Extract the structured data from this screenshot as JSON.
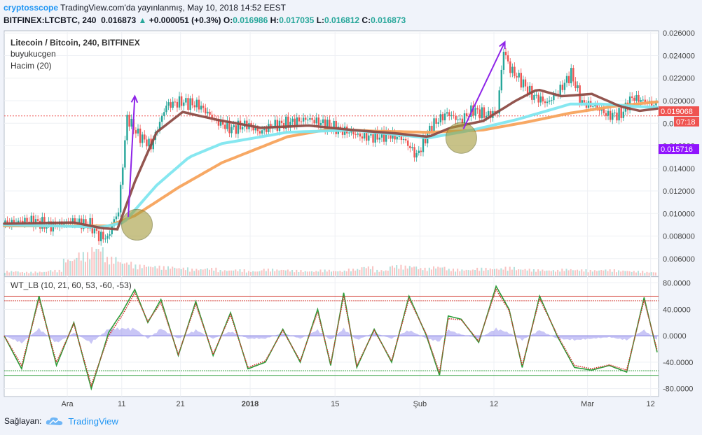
{
  "header": {
    "publisher": "cryptosscope",
    "published_text": "TradingView.com'da yayınlanmış, May 10, 2018 14:52 EEST",
    "symbol": "BITFINEX:LTCBTC, 240",
    "last": "0.016873",
    "change": "+0.000051 (+0.3%)",
    "o_label": "O:",
    "o_val": "0.016986",
    "h_label": "H:",
    "h_val": "0.017035",
    "l_label": "L:",
    "l_val": "0.016812",
    "c_label": "C:",
    "c_val": "0.016873"
  },
  "legend": {
    "title": "Litecoin / Bitcoin, 240, BITFINEX",
    "author": "buyukucgen",
    "volume": "Hacim (20)",
    "osc": "WT_LB (10, 21, 60, 53, -60, -53)"
  },
  "footer": {
    "label": "Sağlayan:",
    "brand": "TradingView"
  },
  "colors": {
    "up": "#26a69a",
    "down": "#ef5350",
    "ma_fast": "#8d4c46",
    "ma_mid": "#7fe6ef",
    "ma_slow": "#f7a35c",
    "arrow": "#8e24e8",
    "circle": "#a49b3a",
    "wt1": "#2e9d3a",
    "wt2": "#d0342c",
    "diff": "#9c98ef",
    "badge_red": "#ef5350",
    "badge_purple": "#9013fe"
  },
  "chart_data": [
    {
      "type": "candlestick",
      "title": "Litecoin / Bitcoin, 240, BITFINEX",
      "ylim": [
        0.0045,
        0.0262
      ],
      "y_ticks": [
        "0.026000",
        "0.024000",
        "0.022000",
        "0.020000",
        "0.018000",
        "0.016000",
        "0.014000",
        "0.012000",
        "0.010000",
        "0.008000",
        "0.006000"
      ],
      "x_tick_labels": [
        "Ara",
        "11",
        "21",
        "2018",
        "15",
        "Şub",
        "12",
        "Mar",
        "12"
      ],
      "price_series": {
        "x": [
          0,
          12,
          22,
          32,
          40,
          44,
          48,
          51,
          53,
          57,
          62,
          68,
          75,
          82,
          90,
          98,
          105,
          112,
          118,
          124,
          130,
          140,
          150,
          155,
          160,
          165,
          171,
          177,
          184,
          190,
          197,
          204,
          210,
          216,
          222,
          227,
          230,
          233,
          237,
          243,
          250,
          256,
          261,
          266,
          272,
          278,
          284,
          289,
          300
        ],
        "close": [
          0.0091,
          0.0094,
          0.0089,
          0.0093,
          0.009,
          0.008,
          0.0078,
          0.0094,
          0.0102,
          0.0185,
          0.017,
          0.016,
          0.0196,
          0.0199,
          0.0196,
          0.0182,
          0.0175,
          0.0179,
          0.0172,
          0.0178,
          0.018,
          0.0184,
          0.0178,
          0.0174,
          0.0172,
          0.0168,
          0.0168,
          0.017,
          0.0166,
          0.0151,
          0.0178,
          0.0189,
          0.0182,
          0.0192,
          0.0187,
          0.019,
          0.0245,
          0.0228,
          0.022,
          0.0205,
          0.0198,
          0.021,
          0.0224,
          0.0198,
          0.0195,
          0.0187,
          0.0188,
          0.0203,
          0.0196
        ]
      },
      "moving_averages": [
        {
          "x": [
            0,
            32,
            45,
            52,
            60,
            70,
            82,
            98,
            118,
            140,
            160,
            180,
            195,
            205,
            220,
            235,
            245,
            256,
            270,
            283,
            292,
            300
          ],
          "y": [
            0.0091,
            0.0092,
            0.0087,
            0.0086,
            0.0128,
            0.0172,
            0.019,
            0.0183,
            0.0176,
            0.0178,
            0.0174,
            0.0171,
            0.0168,
            0.0176,
            0.0182,
            0.02,
            0.021,
            0.0204,
            0.0206,
            0.0195,
            0.0191,
            0.0193
          ]
        },
        {
          "x": [
            0,
            45,
            55,
            70,
            85,
            100,
            130,
            160,
            195,
            215,
            235,
            260,
            275,
            290,
            300
          ],
          "y": [
            0.009,
            0.0088,
            0.0092,
            0.0125,
            0.015,
            0.0162,
            0.0172,
            0.0174,
            0.0167,
            0.0174,
            0.0183,
            0.0197,
            0.0197,
            0.0195,
            0.0194
          ]
        },
        {
          "x": [
            0,
            48,
            60,
            80,
            100,
            130,
            150,
            170,
            195,
            220,
            240,
            260,
            280,
            300
          ],
          "y": [
            0.0089,
            0.0089,
            0.0098,
            0.0123,
            0.0145,
            0.0168,
            0.0175,
            0.0173,
            0.0172,
            0.0174,
            0.0181,
            0.0189,
            0.0195,
            0.0199
          ]
        }
      ],
      "arrows": [
        {
          "from": [
            57,
            0.0097
          ],
          "to": [
            60,
            0.0204
          ]
        },
        {
          "from": [
            211,
            0.0175
          ],
          "to": [
            230,
            0.0252
          ]
        }
      ],
      "circles": [
        {
          "center": [
            61,
            0.009
          ]
        },
        {
          "center": [
            210,
            0.0167
          ]
        }
      ],
      "hline_red_dotted": 0.01865,
      "price_badges": [
        "0.019068",
        "07:18",
        "0.015716"
      ],
      "volume_relative": [
        0.15,
        0.12,
        0.13,
        0.18,
        0.55,
        0.75,
        0.95,
        0.6,
        0.45,
        0.35,
        0.32,
        0.3,
        0.26,
        0.22,
        0.25,
        0.18,
        0.2,
        0.15,
        0.22,
        0.2,
        0.18,
        0.15,
        0.19,
        0.16,
        0.22,
        0.3,
        0.18,
        0.34,
        0.32,
        0.25,
        0.3,
        0.22,
        0.2,
        0.25,
        0.24,
        0.28,
        0.22,
        0.2,
        0.18,
        0.22,
        0.2,
        0.18,
        0.2,
        0.17,
        0.15,
        0.12
      ]
    },
    {
      "type": "line",
      "title": "WT_LB (10, 21, 60, 53, -60, -53)",
      "ylim": [
        -92,
        88
      ],
      "y_ticks": [
        "80.0000",
        "40.0000",
        "0.0000",
        "-40.0000",
        "-80.0000"
      ],
      "levels": [
        60,
        53,
        -53,
        -60
      ],
      "x": [
        0,
        8,
        16,
        24,
        32,
        40,
        48,
        54,
        60,
        66,
        72,
        80,
        88,
        96,
        104,
        112,
        120,
        128,
        136,
        144,
        150,
        156,
        162,
        170,
        178,
        186,
        194,
        200,
        204,
        210,
        218,
        226,
        232,
        238,
        246,
        254,
        262,
        270,
        278,
        286,
        294,
        300
      ],
      "wt1": [
        0,
        -50,
        60,
        -45,
        20,
        -80,
        5,
        35,
        70,
        20,
        55,
        -30,
        52,
        -30,
        35,
        -50,
        -40,
        10,
        -40,
        40,
        -45,
        65,
        -48,
        10,
        -40,
        60,
        0,
        -60,
        30,
        25,
        -10,
        75,
        40,
        -48,
        60,
        0,
        -48,
        -52,
        -45,
        -55,
        58,
        -25
      ],
      "wt2": [
        0,
        -45,
        55,
        -40,
        18,
        -75,
        0,
        30,
        65,
        22,
        50,
        -28,
        48,
        -28,
        32,
        -48,
        -38,
        8,
        -38,
        36,
        -42,
        60,
        -45,
        8,
        -38,
        56,
        2,
        -56,
        26,
        24,
        -8,
        70,
        38,
        -45,
        56,
        2,
        -45,
        -50,
        -44,
        -52,
        54,
        -22
      ],
      "diff": [
        0,
        -5,
        5,
        -5,
        2,
        -5,
        5,
        5,
        5,
        -2,
        5,
        -2,
        4,
        -2,
        3,
        -2,
        -2,
        2,
        -2,
        4,
        -3,
        5,
        -3,
        2,
        -2,
        4,
        -2,
        -4,
        4,
        1,
        -2,
        5,
        2,
        -3,
        4,
        -2,
        -3,
        -2,
        -1,
        -3,
        4,
        -3
      ]
    }
  ]
}
